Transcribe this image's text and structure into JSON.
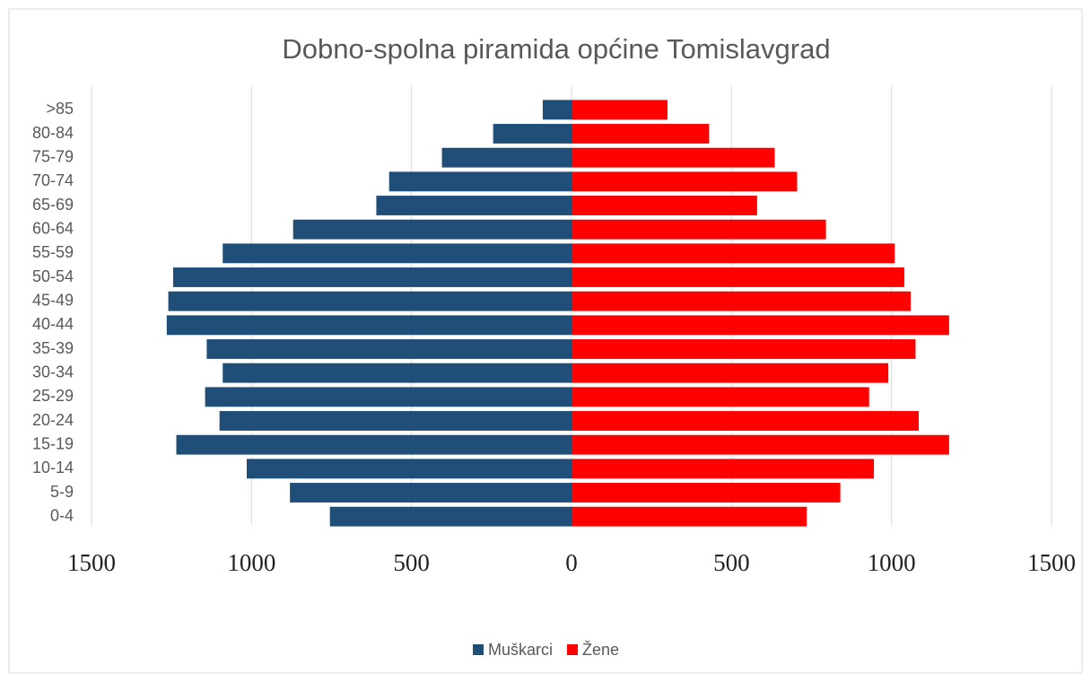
{
  "chart_data": {
    "type": "bar",
    "orientation": "horizontal",
    "title": "Dobno-spolna piramida općine Tomislavgrad",
    "categories": [
      ">85",
      "80-84",
      "75-79",
      "70-74",
      "65-69",
      "60-64",
      "55-59",
      "50-54",
      "45-49",
      "40-44",
      "35-39",
      "30-34",
      "25-29",
      "20-24",
      "15-19",
      "10-14",
      "5-9",
      "0-4"
    ],
    "series": [
      {
        "name": "Muškarci",
        "color": "#1f4e79",
        "values": [
          -90,
          -245,
          -405,
          -570,
          -610,
          -870,
          -1090,
          -1245,
          -1260,
          -1265,
          -1140,
          -1090,
          -1145,
          -1100,
          -1235,
          -1015,
          -880,
          -755
        ]
      },
      {
        "name": "Žene",
        "color": "#ff0000",
        "values": [
          300,
          430,
          635,
          705,
          580,
          795,
          1010,
          1040,
          1060,
          1180,
          1075,
          990,
          930,
          1085,
          1180,
          945,
          840,
          735
        ]
      }
    ],
    "xlim": [
      -1500,
      1500
    ],
    "xticks": [
      {
        "value": -1500,
        "label": "1500"
      },
      {
        "value": -1000,
        "label": "1000"
      },
      {
        "value": -500,
        "label": "500"
      },
      0,
      500,
      1000,
      1500
    ],
    "grid": true,
    "legend": "bottom"
  }
}
